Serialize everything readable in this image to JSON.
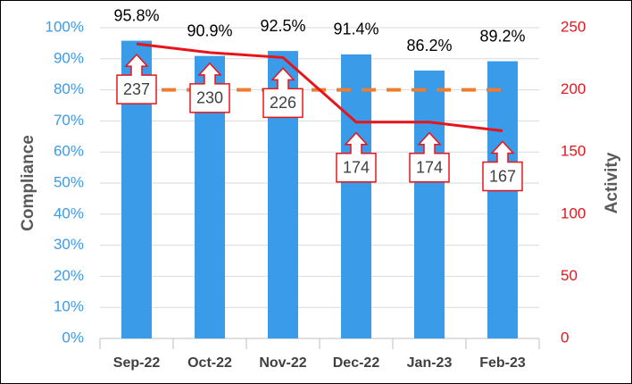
{
  "chart_data": {
    "type": "bar",
    "categories": [
      "Sep-22",
      "Oct-22",
      "Nov-22",
      "Dec-22",
      "Jan-23",
      "Feb-23"
    ],
    "series": [
      {
        "type": "bar",
        "color": "#3a9be8",
        "axis": "y",
        "values": [
          95.8,
          90.9,
          92.5,
          91.4,
          86.2,
          89.2
        ],
        "value_labels": [
          "95.8%",
          "90.9%",
          "92.5%",
          "91.4%",
          "86.2%",
          "89.2%"
        ]
      },
      {
        "type": "line",
        "color": "#ed7d31",
        "axis": "y",
        "dashed": true,
        "values": [
          80,
          80,
          80,
          80,
          80,
          80
        ]
      },
      {
        "type": "line",
        "color": "#e8141c",
        "axis": "y2",
        "label_style": "callout",
        "values": [
          237,
          230,
          226,
          174,
          174,
          167
        ]
      }
    ],
    "ylabel": "Compliance",
    "y2label": "Activity",
    "ylim": [
      0,
      100
    ],
    "yticks": [
      {
        "value": 0,
        "label": "0%"
      },
      {
        "value": 10,
        "label": "10%"
      },
      {
        "value": 20,
        "label": "20%"
      },
      {
        "value": 30,
        "label": "30%"
      },
      {
        "value": 40,
        "label": "40%"
      },
      {
        "value": 50,
        "label": "50%"
      },
      {
        "value": 60,
        "label": "60%"
      },
      {
        "value": 70,
        "label": "70%"
      },
      {
        "value": 80,
        "label": "80%"
      },
      {
        "value": 90,
        "label": "90%"
      },
      {
        "value": 100,
        "label": "100%"
      }
    ],
    "y2lim": [
      0,
      250
    ],
    "y2ticks": [
      0,
      50,
      100,
      150,
      200,
      250
    ],
    "ytick_color": "#3a9be8",
    "y2tick_color": "#e8141c",
    "grid": true
  }
}
